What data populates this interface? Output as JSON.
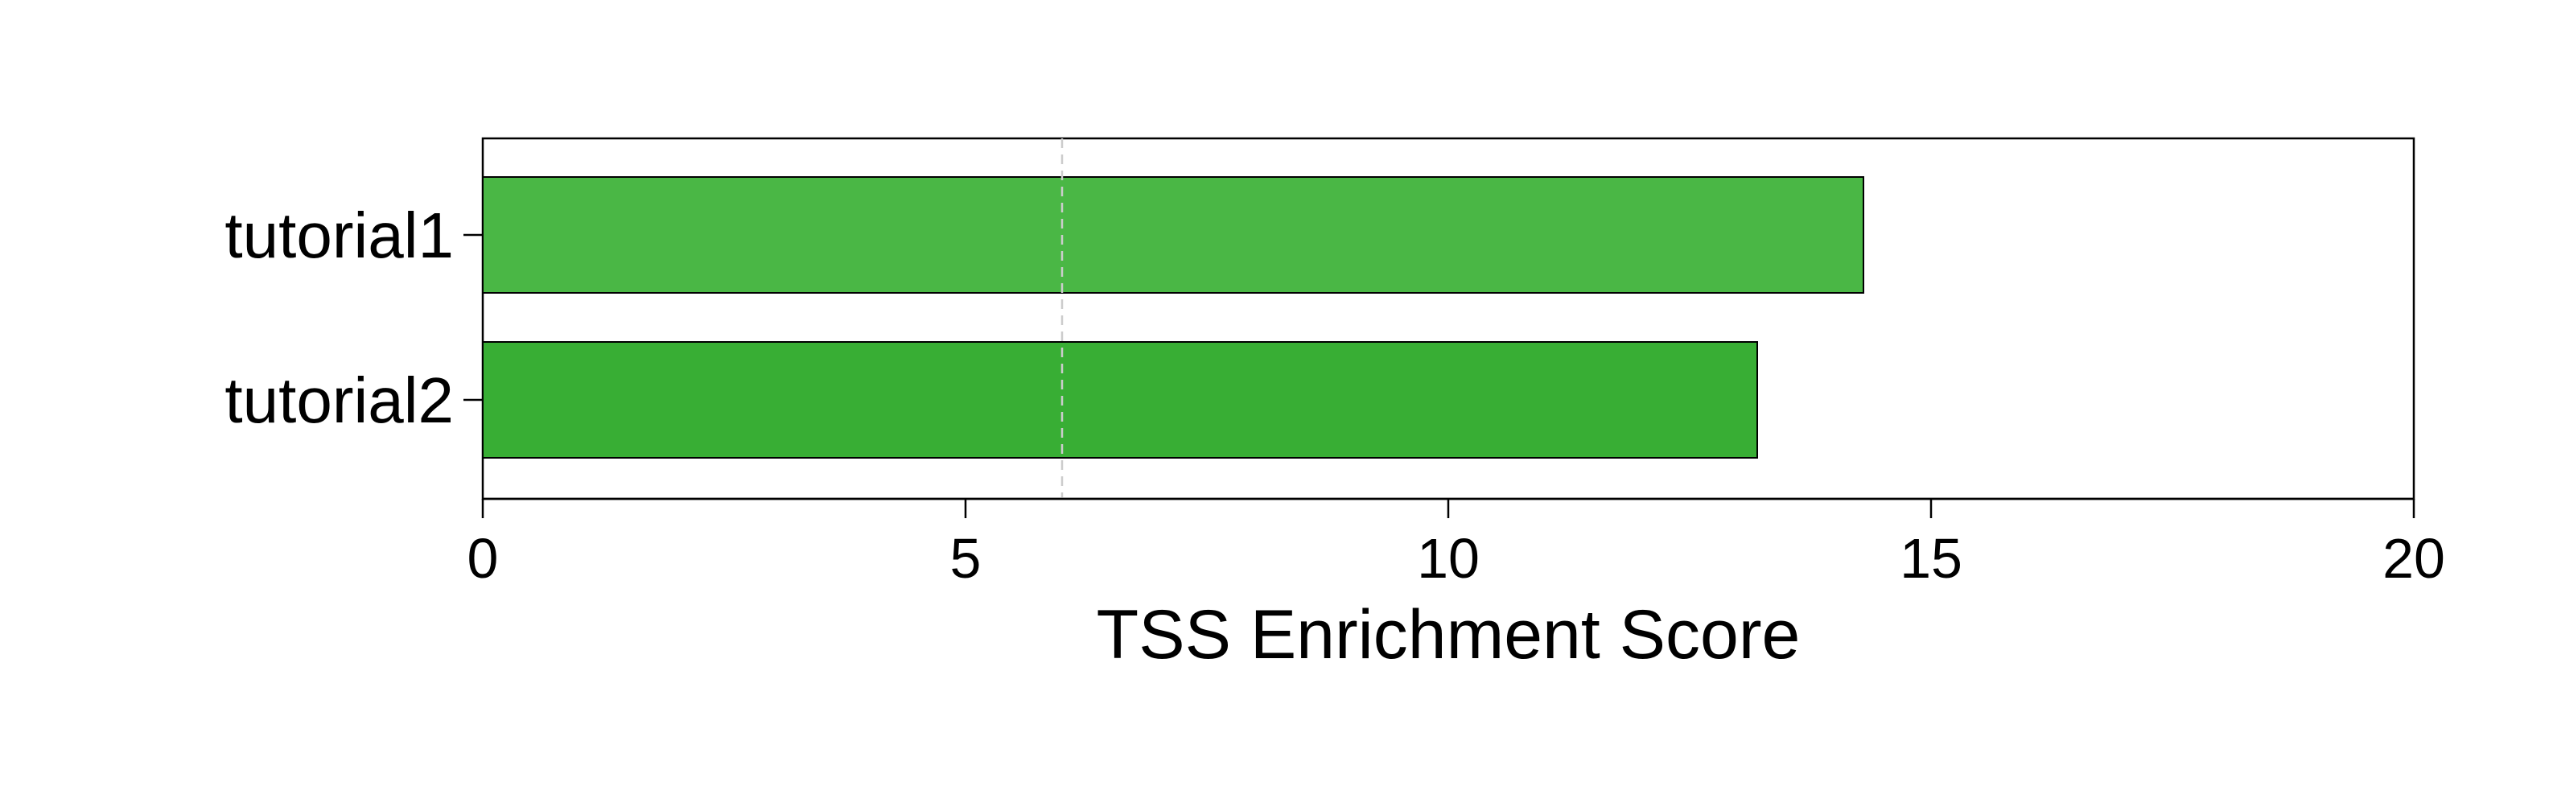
{
  "chart_data": {
    "type": "bar",
    "orientation": "horizontal",
    "categories": [
      "tutorial1",
      "tutorial2"
    ],
    "values": [
      14.3,
      13.2
    ],
    "bar_colors": [
      "#4ab745",
      "#38ae34"
    ],
    "xlabel": "TSS Enrichment Score",
    "ylabel": "",
    "title": "",
    "xlim": [
      0,
      20
    ],
    "xticks": [
      0,
      5,
      10,
      15,
      20
    ],
    "xtick_labels": [
      "0",
      "5",
      "10",
      "15",
      "20"
    ],
    "reference_line": {
      "x": 6,
      "style": "dashed",
      "color": "#cccccc"
    },
    "grid": false,
    "legend": "none"
  }
}
